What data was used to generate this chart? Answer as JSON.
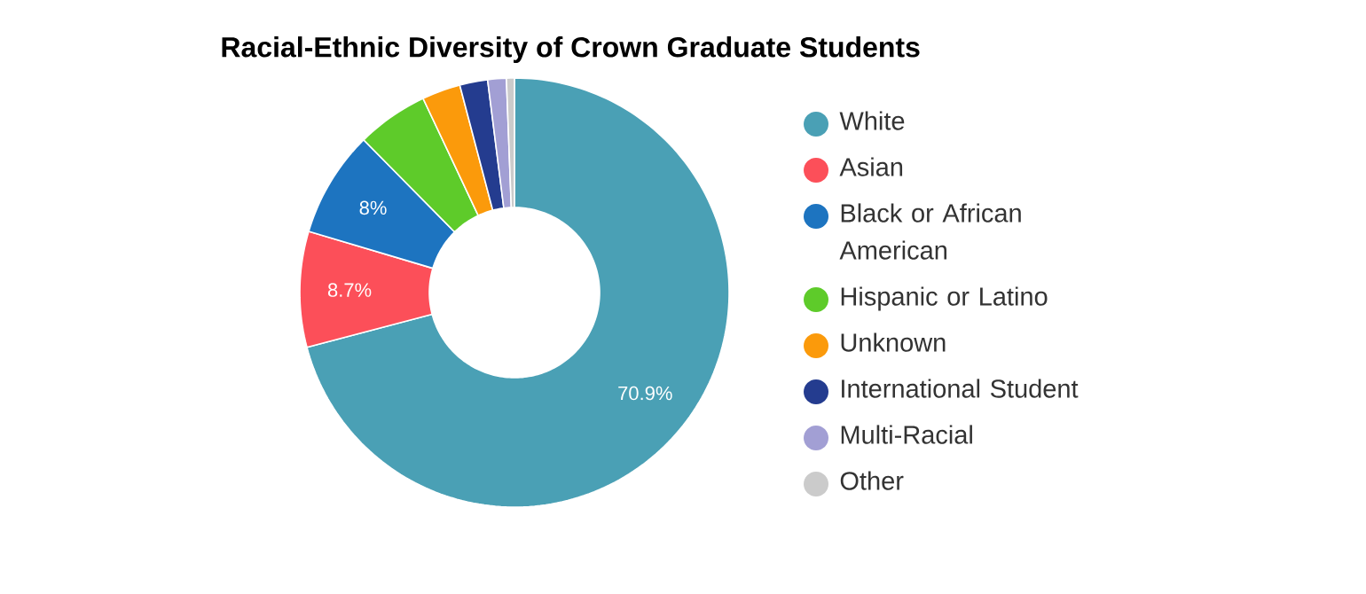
{
  "chart_data": {
    "type": "donut",
    "title": "Racial-Ethnic Diversity of Crown Graduate Students",
    "categories": [
      "White",
      "Asian",
      "Black or African American",
      "Hispanic or Latino",
      "Unknown",
      "International Student",
      "Multi-Racial",
      "Other"
    ],
    "values": [
      70.9,
      8.7,
      8,
      5.4,
      2.9,
      2.1,
      1.4,
      0.6
    ],
    "colors": [
      "#4aa0b5",
      "#fc4f59",
      "#1d74c0",
      "#5ecb2a",
      "#fb9a0b",
      "#243c8f",
      "#a29fd4",
      "#cbcbcb"
    ],
    "value_labels": [
      "70.9%",
      "8.7%",
      "8%",
      null,
      null,
      null,
      null,
      null
    ],
    "legend": "right"
  }
}
